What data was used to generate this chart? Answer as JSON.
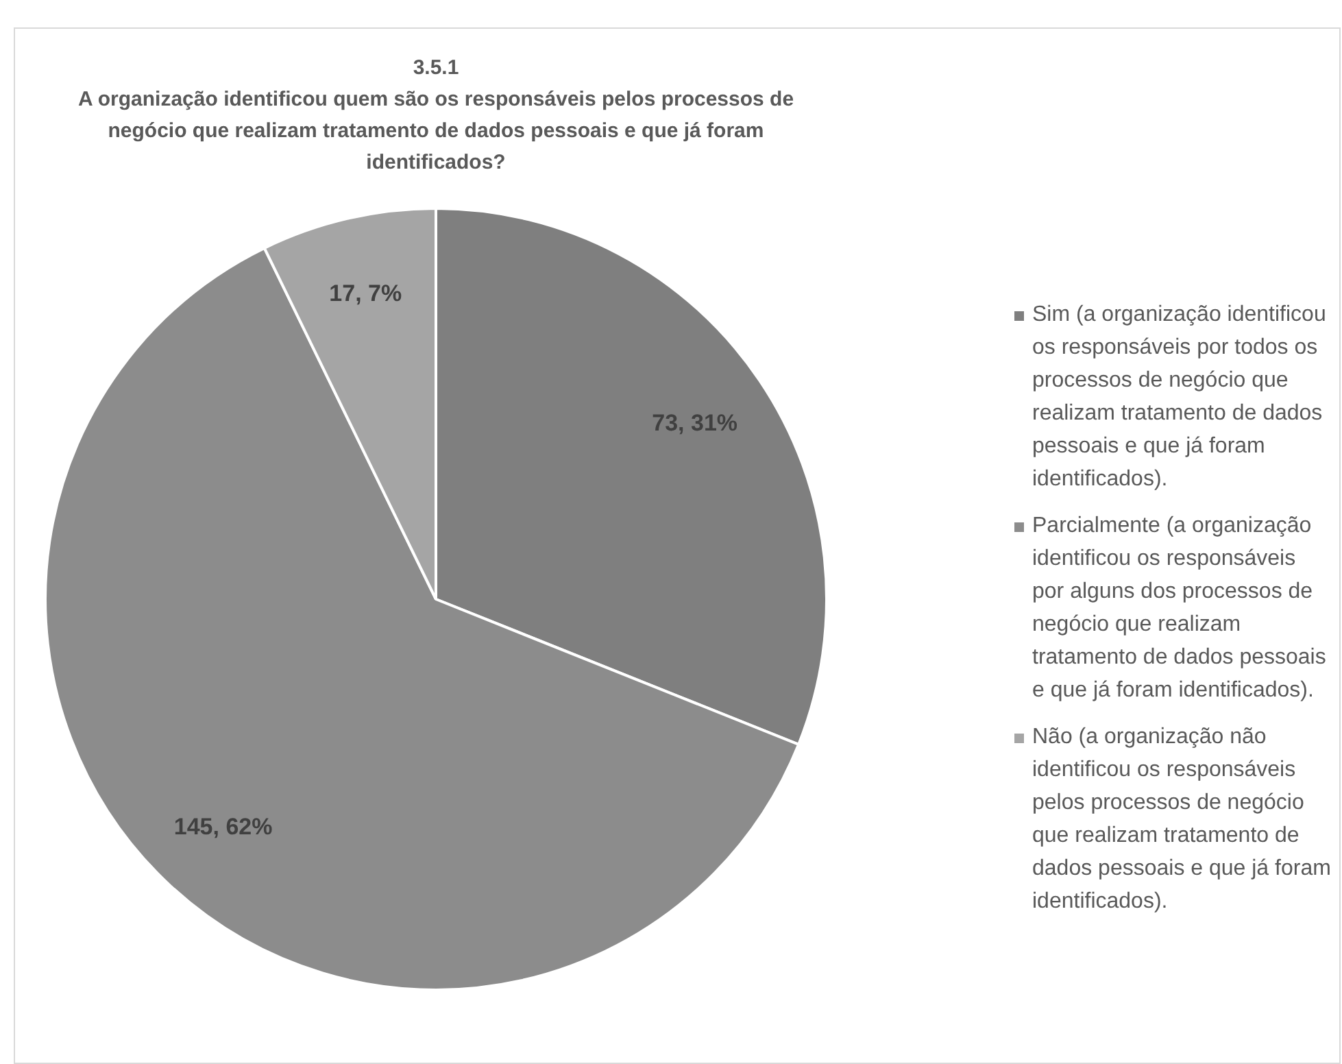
{
  "chart_data": {
    "type": "pie",
    "title": "3.5.1\nA organização identificou quem são os responsáveis pelos processos de negócio que realizam tratamento de dados pessoais e que já foram\nidentificados?",
    "categories": [
      "Sim (a organização identificou os responsáveis por todos os processos de negócio que realizam tratamento de dados pessoais e que já foram identificados).",
      "Parcialmente (a organização identificou os responsáveis por alguns dos processos de negócio que realizam tratamento de dados pessoais e que já foram identificados).",
      "Não (a organização não identificou os responsáveis pelos processos de negócio que realizam tratamento de dados pessoais e que já foram identificados)."
    ],
    "values": [
      73,
      145,
      17
    ],
    "value_labels": [
      "73, 31%",
      "145, 62%",
      "17, 7%"
    ],
    "colors": [
      "#7f7f7f",
      "#8c8c8c",
      "#a5a5a5"
    ],
    "legend": "right"
  }
}
